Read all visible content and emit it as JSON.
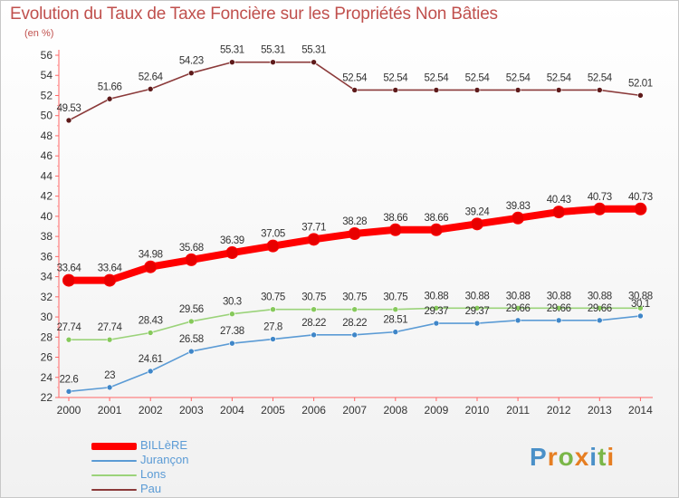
{
  "title": "Evolution du Taux de Taxe Foncière sur les Propriétés Non Bâties",
  "subtitle": "(en %)",
  "logo": {
    "text": "Proxiti",
    "letter_colors": [
      "#4a90c8",
      "#e67e22",
      "#7ab648",
      "#e67e22",
      "#4a90c8",
      "#7ab648",
      "#e67e22"
    ]
  },
  "chart_data": {
    "type": "line",
    "title": "Evolution du Taux de Taxe Foncière sur les Propriétés Non Bâties",
    "ylabel": "(en %)",
    "xlabel": "",
    "categories": [
      "2000",
      "2001",
      "2002",
      "2003",
      "2004",
      "2005",
      "2006",
      "2007",
      "2008",
      "2009",
      "2010",
      "2011",
      "2012",
      "2013",
      "2014"
    ],
    "ylim": [
      22,
      56
    ],
    "yticks": [
      22,
      24,
      26,
      28,
      30,
      32,
      34,
      36,
      38,
      40,
      42,
      44,
      46,
      48,
      50,
      52,
      54,
      56
    ],
    "grid": false,
    "series": [
      {
        "name": "BILLèRE",
        "color": "#ff0000",
        "marker": "#e80000",
        "thick": true,
        "values": [
          33.64,
          33.64,
          34.98,
          35.68,
          36.39,
          37.05,
          37.71,
          38.28,
          38.66,
          38.66,
          39.24,
          39.83,
          40.43,
          40.73,
          40.73
        ],
        "labels": [
          "33.64",
          "33.64",
          "34.98",
          "35.68",
          "36.39",
          "37.05",
          "37.71",
          "38.28",
          "38.66",
          "38.66",
          "39.24",
          "39.83",
          "40.43",
          "40.73",
          "40.73"
        ]
      },
      {
        "name": "Jurançon",
        "color": "#5b9bd5",
        "marker": "#3f86c8",
        "thick": false,
        "values": [
          22.6,
          23,
          24.61,
          26.58,
          27.38,
          27.8,
          28.22,
          28.22,
          28.51,
          29.37,
          29.37,
          29.66,
          29.66,
          29.66,
          30.1
        ],
        "labels": [
          "22.6",
          "23",
          "24.61",
          "26.58",
          "27.38",
          "27.8",
          "28.22",
          "28.22",
          "28.51",
          "29.37",
          "29.37",
          "29.66",
          "29.66",
          "29.66",
          "30.1"
        ]
      },
      {
        "name": "Lons",
        "color": "#9bd37a",
        "marker": "#86c95b",
        "thick": false,
        "values": [
          27.74,
          27.74,
          28.43,
          29.56,
          30.3,
          30.75,
          30.75,
          30.75,
          30.75,
          30.88,
          30.88,
          30.88,
          30.88,
          30.88,
          30.88
        ],
        "labels": [
          "27.74",
          "27.74",
          "28.43",
          "29.56",
          "30.3",
          "30.75",
          "30.75",
          "30.75",
          "30.75",
          "30.88",
          "30.88",
          "30.88",
          "30.88",
          "30.88",
          "30.88"
        ]
      },
      {
        "name": "Pau",
        "color": "#8b3a3a",
        "marker": "#5e1a1a",
        "thick": false,
        "values": [
          49.53,
          51.66,
          52.64,
          54.23,
          55.31,
          55.31,
          55.31,
          52.54,
          52.54,
          52.54,
          52.54,
          52.54,
          52.54,
          52.54,
          52.01
        ],
        "labels": [
          "49.53",
          "51.66",
          "52.64",
          "54.23",
          "55.31",
          "55.31",
          "55.31",
          "52.54",
          "52.54",
          "52.54",
          "52.54",
          "52.54",
          "52.54",
          "52.54",
          "52.01"
        ]
      }
    ]
  }
}
